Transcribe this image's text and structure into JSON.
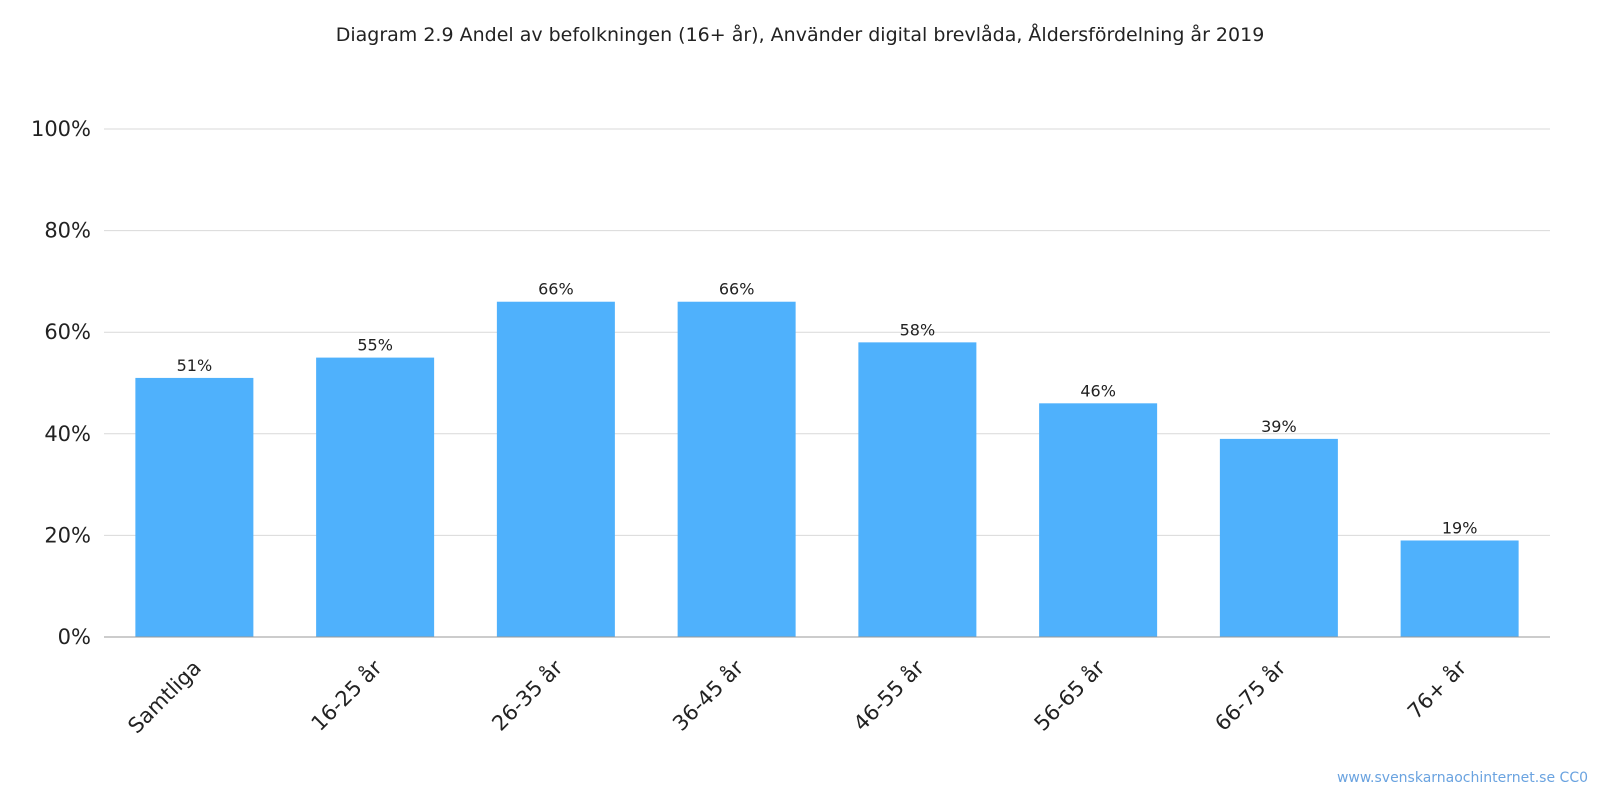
{
  "chart_data": {
    "type": "bar",
    "title": "Diagram 2.9 Andel av befolkningen (16+ år), Använder digital brevlåda, Åldersfördelning år 2019",
    "categories": [
      "Samtliga",
      "16-25 år",
      "26-35 år",
      "36-45 år",
      "46-55 år",
      "56-65 år",
      "66-75 år",
      "76+ år"
    ],
    "values": [
      51,
      55,
      66,
      66,
      58,
      46,
      39,
      19
    ],
    "data_labels": [
      "51%",
      "55%",
      "66%",
      "66%",
      "58%",
      "46%",
      "39%",
      "19%"
    ],
    "yticks": [
      "0%",
      "20%",
      "40%",
      "60%",
      "80%",
      "100%"
    ],
    "ytick_values": [
      0,
      20,
      40,
      60,
      80,
      100
    ],
    "ylim": [
      0,
      100
    ],
    "xlabel": "",
    "ylabel": "",
    "grid": true,
    "legend": "none",
    "bar_color": "#4fb1fc"
  },
  "credit": "www.svenskarnaochinternet.se CC0"
}
